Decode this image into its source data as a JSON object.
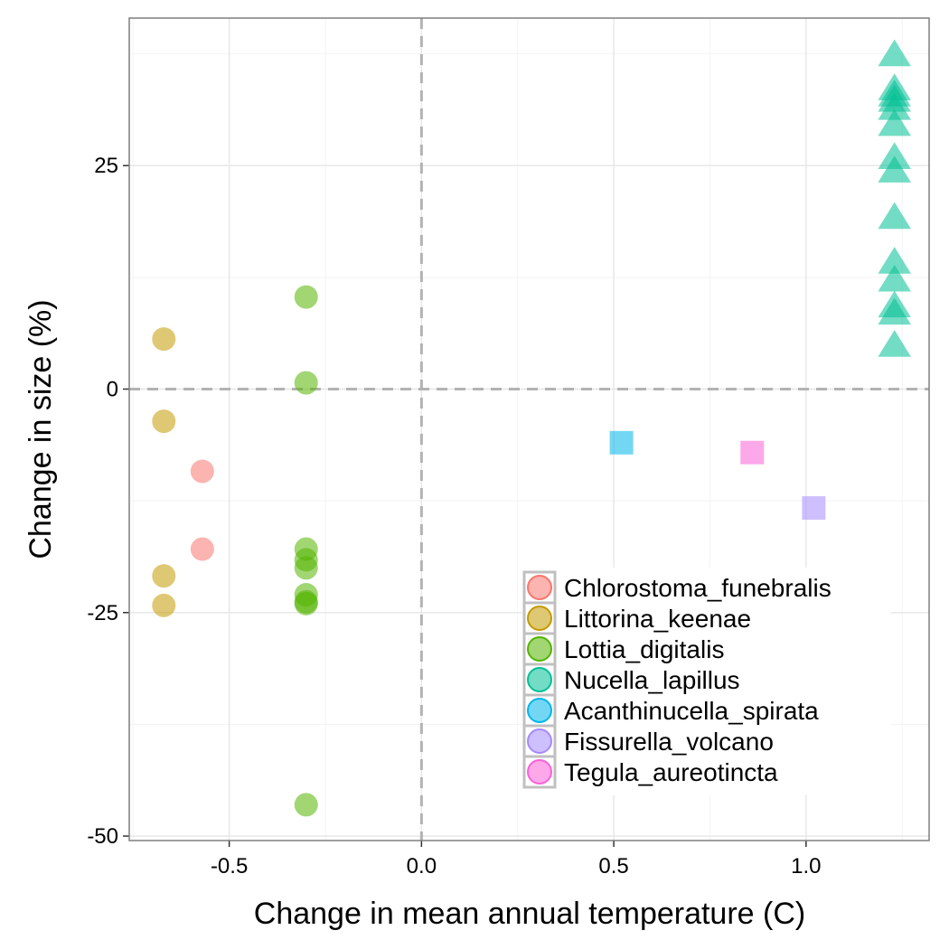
{
  "chart_data": {
    "type": "scatter",
    "title": "",
    "xlabel": "Change in mean annual temperature (C)",
    "ylabel": "Change in size (%)",
    "xlim": [
      -0.76,
      1.32
    ],
    "ylim": [
      -50.5,
      41.5
    ],
    "x_ticks": [
      -0.5,
      0.0,
      0.5,
      1.0
    ],
    "x_tick_labels": [
      "-0.5",
      "0.0",
      "0.5",
      "1.0"
    ],
    "y_ticks": [
      -50,
      -25,
      0,
      25
    ],
    "y_tick_labels": [
      "-50",
      "-25",
      "0",
      "25"
    ],
    "grid": true,
    "reference_lines": {
      "x": 0,
      "y": 0,
      "style": "dashed"
    },
    "legend_position": "bottom-right",
    "series": [
      {
        "name": "Chlorostoma_funebralis",
        "color": "#F8766D",
        "shape": "circle",
        "points": [
          [
            -0.57,
            -9.2
          ],
          [
            -0.57,
            -17.9
          ]
        ]
      },
      {
        "name": "Littorina_keenae",
        "color": "#C49A00",
        "shape": "circle",
        "points": [
          [
            -0.67,
            5.6
          ],
          [
            -0.67,
            -3.6
          ],
          [
            -0.67,
            -20.9
          ],
          [
            -0.67,
            -24.2
          ]
        ]
      },
      {
        "name": "Lottia_digitalis",
        "color": "#53B400",
        "shape": "circle",
        "points": [
          [
            -0.3,
            10.3
          ],
          [
            -0.3,
            0.7
          ],
          [
            -0.3,
            -17.9
          ],
          [
            -0.3,
            -19.1
          ],
          [
            -0.3,
            -20.0
          ],
          [
            -0.3,
            -23.0
          ],
          [
            -0.3,
            -23.8
          ],
          [
            -0.3,
            -24.0
          ],
          [
            -0.3,
            -46.5
          ]
        ]
      },
      {
        "name": "Nucella_lapillus",
        "color": "#00C094",
        "shape": "triangle",
        "points": [
          [
            1.23,
            37.4
          ],
          [
            1.23,
            33.6
          ],
          [
            1.23,
            32.9
          ],
          [
            1.23,
            32.3
          ],
          [
            1.23,
            31.4
          ],
          [
            1.23,
            29.6
          ],
          [
            1.23,
            25.9
          ],
          [
            1.23,
            24.4
          ],
          [
            1.23,
            19.2
          ],
          [
            1.23,
            14.2
          ],
          [
            1.23,
            12.2
          ],
          [
            1.23,
            9.3
          ],
          [
            1.23,
            8.5
          ],
          [
            1.23,
            4.9
          ]
        ]
      },
      {
        "name": "Acanthinucella_spirata",
        "color": "#00B6EB",
        "shape": "square",
        "points": [
          [
            0.52,
            -6.0
          ]
        ]
      },
      {
        "name": "Fissurella_volcano",
        "color": "#A58AFF",
        "shape": "square",
        "points": [
          [
            1.02,
            -13.3
          ]
        ]
      },
      {
        "name": "Tegula_aureotincta",
        "color": "#FB61D7",
        "shape": "square",
        "points": [
          [
            0.86,
            -7.1
          ]
        ]
      }
    ]
  }
}
